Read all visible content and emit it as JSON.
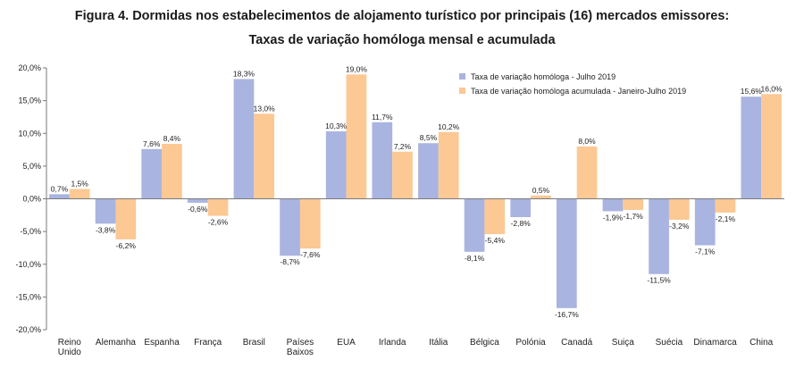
{
  "chart_data": {
    "type": "bar",
    "title": "Figura 4. Dormidas nos estabelecimentos de alojamento turístico por principais (16) mercados emissores:",
    "subtitle": "Taxas de variação homóloga mensal e acumulada",
    "categories": [
      [
        "Reino",
        "Unido"
      ],
      [
        "Alemanha"
      ],
      [
        "Espanha"
      ],
      [
        "França"
      ],
      [
        "Brasil"
      ],
      [
        "Países",
        "Baixos"
      ],
      [
        "EUA"
      ],
      [
        "Irlanda"
      ],
      [
        "Itália"
      ],
      [
        "Bélgica"
      ],
      [
        "Polónia"
      ],
      [
        "Canadá"
      ],
      [
        "Suiça"
      ],
      [
        "Suécia"
      ],
      [
        "Dinamarca"
      ],
      [
        "China"
      ]
    ],
    "ylim": [
      -20,
      20
    ],
    "yticks": [
      20,
      15,
      10,
      5,
      0,
      -5,
      -10,
      -15,
      -20
    ],
    "ytick_labels": [
      "20,0%",
      "15,0%",
      "10,0%",
      "5,0%",
      "0,0%",
      "-5,0%",
      "-10,0%",
      "-15,0%",
      "-20,0%"
    ],
    "legend_position": "top-right",
    "series": [
      {
        "name": "Taxa de variação homóloga - Julho 2019",
        "color": "#a9b4e0",
        "values": [
          0.7,
          -3.8,
          7.6,
          -0.6,
          18.3,
          -8.7,
          10.3,
          11.7,
          8.5,
          -8.1,
          -2.8,
          -16.7,
          -1.9,
          -11.5,
          -7.1,
          15.6
        ],
        "labels": [
          "0,7%",
          "-3,8%",
          "7,6%",
          "-0,6%",
          "18,3%",
          "-8,7%",
          "10,3%",
          "11,7%",
          "8,5%",
          "-8,1%",
          "-2,8%",
          "-16,7%",
          "-1,9%",
          "-11,5%",
          "-7,1%",
          "15,6%"
        ]
      },
      {
        "name": "Taxa de variação homóloga acumulada - Janeiro-Julho 2019",
        "color": "#fcc894",
        "values": [
          1.5,
          -6.2,
          8.4,
          -2.6,
          13.0,
          -7.6,
          19.0,
          7.2,
          10.2,
          -5.4,
          0.5,
          8.0,
          -1.7,
          -3.2,
          -2.1,
          16.0
        ],
        "labels": [
          "1,5%",
          "-6,2%",
          "8,4%",
          "-2,6%",
          "13,0%",
          "-7,6%",
          "19,0%",
          "7,2%",
          "10,2%",
          "-5,4%",
          "0,5%",
          "8,0%",
          "-1,7%",
          "-3,2%",
          "-2,1%",
          "16,0%"
        ]
      }
    ]
  }
}
